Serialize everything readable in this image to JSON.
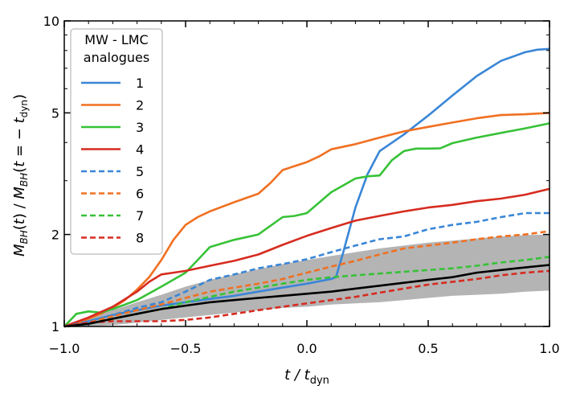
{
  "chart_data": {
    "type": "line",
    "xlabel_main": "t / t",
    "xlabel_sub": "dyn",
    "ylabel": "M_BH(t) / M_BH(t = − t_dyn)",
    "xlim": [
      -1.0,
      1.0
    ],
    "ylim": [
      1,
      10
    ],
    "yscale": "log",
    "x_ticks": [
      -1.0,
      -0.5,
      0.0,
      0.5,
      1.0
    ],
    "x_tick_labels": [
      "−1.0",
      "−0.5",
      "0.0",
      "0.5",
      "1.0"
    ],
    "y_ticks": [
      1,
      2,
      5,
      10
    ],
    "y_tick_labels": [
      "1",
      "2",
      "5",
      "10"
    ],
    "grid": false,
    "legend": {
      "title_line1": "MW - LMC",
      "title_line2": "analogues",
      "placement": "top-left"
    },
    "band": {
      "color": "#b4b4b4",
      "x": [
        -1.0,
        -0.9,
        -0.8,
        -0.7,
        -0.6,
        -0.5,
        -0.4,
        -0.3,
        -0.2,
        -0.1,
        0.0,
        0.1,
        0.2,
        0.3,
        0.4,
        0.5,
        0.6,
        0.7,
        0.8,
        0.9,
        1.0
      ],
      "lower": [
        1.0,
        1.0,
        1.01,
        1.03,
        1.05,
        1.07,
        1.09,
        1.11,
        1.13,
        1.15,
        1.16,
        1.18,
        1.19,
        1.2,
        1.22,
        1.24,
        1.26,
        1.27,
        1.28,
        1.3,
        1.31
      ],
      "upper": [
        1.0,
        1.07,
        1.13,
        1.2,
        1.27,
        1.35,
        1.42,
        1.48,
        1.54,
        1.6,
        1.65,
        1.7,
        1.75,
        1.8,
        1.84,
        1.88,
        1.91,
        1.94,
        1.97,
        1.99,
        2.0
      ]
    },
    "median": {
      "color": "#000000",
      "x": [
        -1.0,
        -0.9,
        -0.8,
        -0.7,
        -0.6,
        -0.5,
        -0.4,
        -0.3,
        -0.2,
        -0.1,
        0.0,
        0.1,
        0.2,
        0.3,
        0.4,
        0.5,
        0.6,
        0.7,
        0.8,
        0.9,
        1.0
      ],
      "y": [
        1.0,
        1.02,
        1.06,
        1.1,
        1.14,
        1.17,
        1.2,
        1.22,
        1.24,
        1.26,
        1.28,
        1.3,
        1.33,
        1.36,
        1.39,
        1.42,
        1.45,
        1.5,
        1.53,
        1.56,
        1.59
      ]
    },
    "series": [
      {
        "name": "1",
        "color": "#3a86d6",
        "dash": "solid",
        "x": [
          -1.0,
          -0.9,
          -0.8,
          -0.7,
          -0.6,
          -0.5,
          -0.4,
          -0.3,
          -0.2,
          -0.1,
          0.0,
          0.1,
          0.12,
          0.15,
          0.2,
          0.25,
          0.3,
          0.4,
          0.5,
          0.6,
          0.7,
          0.8,
          0.9,
          0.95,
          1.0
        ],
        "y": [
          1.0,
          1.04,
          1.09,
          1.13,
          1.17,
          1.2,
          1.23,
          1.26,
          1.3,
          1.34,
          1.38,
          1.43,
          1.45,
          1.75,
          2.45,
          3.15,
          3.75,
          4.25,
          4.9,
          5.7,
          6.6,
          7.4,
          7.9,
          8.05,
          8.1
        ]
      },
      {
        "name": "2",
        "color": "#f07022",
        "dash": "solid",
        "x": [
          -1.0,
          -0.95,
          -0.9,
          -0.85,
          -0.8,
          -0.75,
          -0.7,
          -0.65,
          -0.6,
          -0.55,
          -0.5,
          -0.45,
          -0.4,
          -0.3,
          -0.2,
          -0.15,
          -0.1,
          -0.05,
          0.0,
          0.05,
          0.1,
          0.2,
          0.3,
          0.4,
          0.5,
          0.6,
          0.7,
          0.8,
          0.9,
          1.0
        ],
        "y": [
          1.0,
          1.02,
          1.06,
          1.1,
          1.15,
          1.22,
          1.32,
          1.45,
          1.65,
          1.92,
          2.15,
          2.28,
          2.38,
          2.55,
          2.72,
          2.95,
          3.25,
          3.35,
          3.45,
          3.6,
          3.8,
          3.95,
          4.15,
          4.35,
          4.5,
          4.65,
          4.8,
          4.92,
          4.95,
          5.0
        ]
      },
      {
        "name": "3",
        "color": "#37c237",
        "dash": "solid",
        "x": [
          -1.0,
          -0.95,
          -0.9,
          -0.85,
          -0.8,
          -0.7,
          -0.6,
          -0.5,
          -0.45,
          -0.4,
          -0.3,
          -0.2,
          -0.1,
          -0.05,
          0.0,
          0.1,
          0.2,
          0.25,
          0.3,
          0.35,
          0.4,
          0.45,
          0.5,
          0.55,
          0.6,
          0.7,
          0.8,
          0.9,
          1.0
        ],
        "y": [
          1.0,
          1.1,
          1.12,
          1.11,
          1.14,
          1.22,
          1.35,
          1.5,
          1.65,
          1.82,
          1.92,
          2.0,
          2.28,
          2.3,
          2.35,
          2.75,
          3.05,
          3.1,
          3.12,
          3.5,
          3.75,
          3.82,
          3.82,
          3.83,
          3.98,
          4.15,
          4.3,
          4.45,
          4.62
        ]
      },
      {
        "name": "4",
        "color": "#d62c20",
        "dash": "solid",
        "x": [
          -1.0,
          -0.9,
          -0.8,
          -0.7,
          -0.65,
          -0.6,
          -0.55,
          -0.5,
          -0.4,
          -0.3,
          -0.2,
          -0.1,
          0.0,
          0.1,
          0.2,
          0.3,
          0.4,
          0.5,
          0.6,
          0.7,
          0.8,
          0.9,
          1.0
        ],
        "y": [
          1.0,
          1.07,
          1.16,
          1.3,
          1.4,
          1.48,
          1.5,
          1.52,
          1.58,
          1.64,
          1.72,
          1.85,
          1.98,
          2.1,
          2.22,
          2.3,
          2.38,
          2.45,
          2.5,
          2.57,
          2.62,
          2.7,
          2.82
        ]
      },
      {
        "name": "5",
        "color": "#3a86d6",
        "dash": "dashed",
        "x": [
          -1.0,
          -0.9,
          -0.8,
          -0.7,
          -0.6,
          -0.5,
          -0.4,
          -0.3,
          -0.2,
          -0.1,
          0.0,
          0.1,
          0.2,
          0.3,
          0.4,
          0.5,
          0.6,
          0.7,
          0.8,
          0.9,
          1.0
        ],
        "y": [
          1.0,
          1.04,
          1.09,
          1.15,
          1.2,
          1.3,
          1.42,
          1.48,
          1.55,
          1.6,
          1.66,
          1.75,
          1.84,
          1.93,
          1.97,
          2.08,
          2.15,
          2.2,
          2.28,
          2.35,
          2.35
        ]
      },
      {
        "name": "6",
        "color": "#f07022",
        "dash": "dashed",
        "x": [
          -1.0,
          -0.9,
          -0.8,
          -0.7,
          -0.6,
          -0.5,
          -0.4,
          -0.3,
          -0.2,
          -0.1,
          0.0,
          0.1,
          0.2,
          0.3,
          0.4,
          0.5,
          0.6,
          0.7,
          0.8,
          0.9,
          1.0
        ],
        "y": [
          1.0,
          1.03,
          1.08,
          1.13,
          1.18,
          1.24,
          1.3,
          1.34,
          1.38,
          1.43,
          1.5,
          1.57,
          1.64,
          1.72,
          1.8,
          1.84,
          1.88,
          1.93,
          1.97,
          2.0,
          2.05
        ]
      },
      {
        "name": "7",
        "color": "#37c237",
        "dash": "dashed",
        "x": [
          -1.0,
          -0.9,
          -0.8,
          -0.7,
          -0.6,
          -0.5,
          -0.4,
          -0.3,
          -0.2,
          -0.1,
          0.0,
          0.1,
          0.2,
          0.3,
          0.4,
          0.5,
          0.6,
          0.7,
          0.8,
          0.9,
          1.0
        ],
        "y": [
          1.0,
          1.02,
          1.06,
          1.1,
          1.14,
          1.2,
          1.25,
          1.3,
          1.34,
          1.38,
          1.42,
          1.45,
          1.47,
          1.49,
          1.51,
          1.53,
          1.55,
          1.58,
          1.62,
          1.65,
          1.69
        ]
      },
      {
        "name": "8",
        "color": "#d62c20",
        "dash": "dashed",
        "x": [
          -1.0,
          -0.9,
          -0.8,
          -0.7,
          -0.6,
          -0.5,
          -0.4,
          -0.3,
          -0.2,
          -0.1,
          0.0,
          0.1,
          0.2,
          0.3,
          0.4,
          0.5,
          0.6,
          0.7,
          0.8,
          0.9,
          1.0
        ],
        "y": [
          1.0,
          1.03,
          1.04,
          1.04,
          1.04,
          1.05,
          1.07,
          1.1,
          1.13,
          1.16,
          1.19,
          1.22,
          1.25,
          1.29,
          1.33,
          1.37,
          1.4,
          1.43,
          1.47,
          1.5,
          1.52
        ]
      }
    ]
  }
}
